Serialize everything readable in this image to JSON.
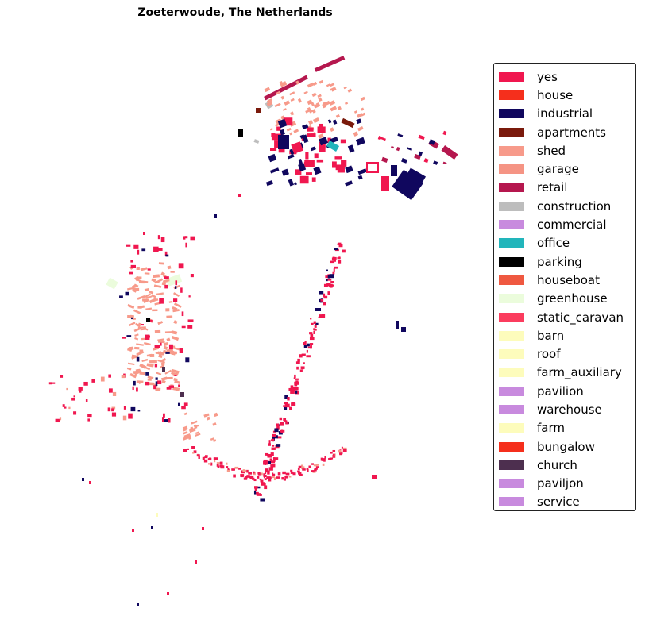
{
  "map": {
    "title": "Zoeterwoude, The Netherlands"
  },
  "legend": {
    "items": [
      {
        "label": "yes",
        "color": "#f0174f"
      },
      {
        "label": "house",
        "color": "#f52f1c"
      },
      {
        "label": "industrial",
        "color": "#10075e"
      },
      {
        "label": "apartments",
        "color": "#7a1a0c"
      },
      {
        "label": "shed",
        "color": "#f79a8a"
      },
      {
        "label": "garage",
        "color": "#f59484"
      },
      {
        "label": "retail",
        "color": "#b5174e"
      },
      {
        "label": "construction",
        "color": "#bdbdbd"
      },
      {
        "label": "commercial",
        "color": "#c88ade"
      },
      {
        "label": "office",
        "color": "#22b5bb"
      },
      {
        "label": "parking",
        "color": "#000000"
      },
      {
        "label": "houseboat",
        "color": "#ef5840"
      },
      {
        "label": "greenhouse",
        "color": "#ebfcdc"
      },
      {
        "label": "static_caravan",
        "color": "#fb3c5e"
      },
      {
        "label": "barn",
        "color": "#fdfcbc"
      },
      {
        "label": "roof",
        "color": "#fdfcbc"
      },
      {
        "label": "farm_auxiliary",
        "color": "#fdfcbc"
      },
      {
        "label": "pavilion",
        "color": "#c88ade"
      },
      {
        "label": "warehouse",
        "color": "#c88ade"
      },
      {
        "label": "farm",
        "color": "#fdfcbc"
      },
      {
        "label": "bungalow",
        "color": "#f52f1c"
      },
      {
        "label": "church",
        "color": "#4d2f4f"
      },
      {
        "label": "paviljon",
        "color": "#c88ade"
      },
      {
        "label": "service",
        "color": "#c88ade"
      }
    ]
  }
}
